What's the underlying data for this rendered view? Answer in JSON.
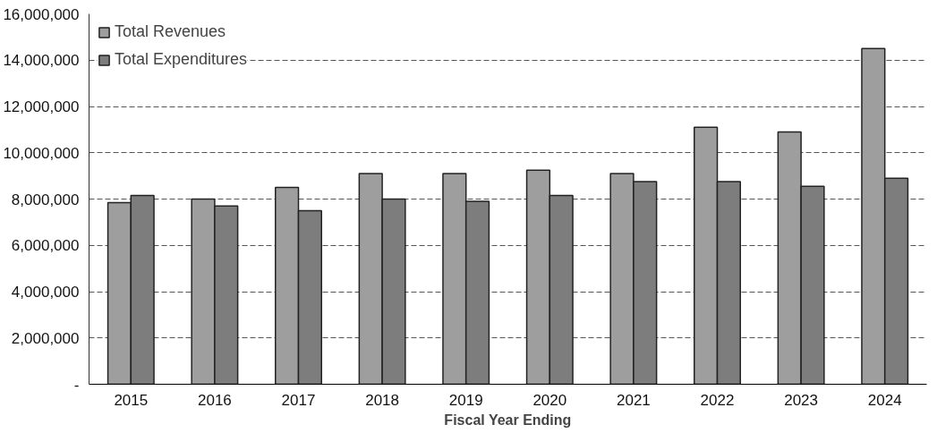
{
  "chart_data": {
    "type": "bar",
    "xlabel": "Fiscal Year Ending",
    "categories": [
      "2015",
      "2016",
      "2017",
      "2018",
      "2019",
      "2020",
      "2021",
      "2022",
      "2023",
      "2024"
    ],
    "series": [
      {
        "name": "Total Revenues",
        "color": "#9e9e9e",
        "values": [
          7850000,
          8000000,
          8500000,
          9100000,
          9100000,
          9250000,
          9100000,
          11100000,
          10900000,
          14500000
        ]
      },
      {
        "name": "Total Expenditures",
        "color": "#7d7d7d",
        "values": [
          8150000,
          7700000,
          7500000,
          8000000,
          7900000,
          8150000,
          8750000,
          8750000,
          8550000,
          8900000
        ]
      }
    ],
    "ylim": [
      0,
      16000000
    ],
    "yticks": [
      {
        "value": 0,
        "label": "-"
      },
      {
        "value": 2000000,
        "label": "2,000,000"
      },
      {
        "value": 4000000,
        "label": "4,000,000"
      },
      {
        "value": 6000000,
        "label": "6,000,000"
      },
      {
        "value": 8000000,
        "label": "8,000,000"
      },
      {
        "value": 10000000,
        "label": "10,000,000"
      },
      {
        "value": 12000000,
        "label": "12,000,000"
      },
      {
        "value": 14000000,
        "label": "14,000,000"
      },
      {
        "value": 16000000,
        "label": "16,000,000"
      }
    ],
    "grid": "y",
    "legend": "top left"
  }
}
